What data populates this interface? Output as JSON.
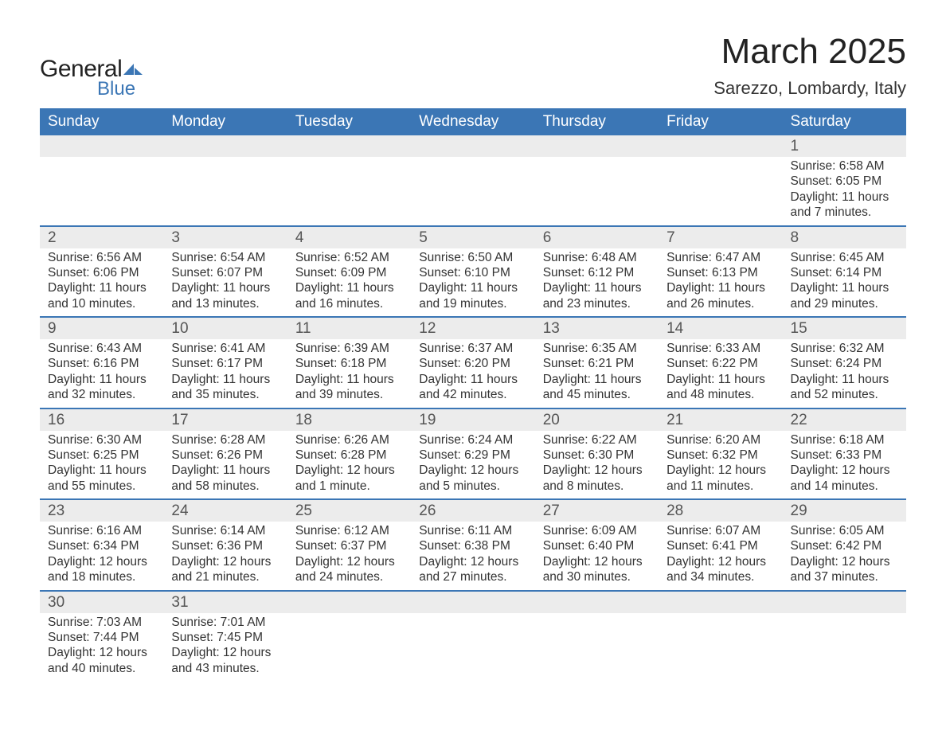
{
  "brand": {
    "word1": "General",
    "word2": "Blue",
    "accent_color": "#3b76b5"
  },
  "title": "March 2025",
  "location": "Sarezzo, Lombardy, Italy",
  "weekday_headers": [
    "Sunday",
    "Monday",
    "Tuesday",
    "Wednesday",
    "Thursday",
    "Friday",
    "Saturday"
  ],
  "colors": {
    "header_bg": "#3b76b5",
    "header_fg": "#ffffff",
    "daynum_bg": "#ececec",
    "row_divider": "#3b76b5",
    "text": "#333333",
    "page_bg": "#ffffff"
  },
  "typography": {
    "title_fontsize": 44,
    "location_fontsize": 22,
    "weekday_fontsize": 19,
    "daynum_fontsize": 19,
    "body_fontsize": 15.5
  },
  "weeks": [
    [
      null,
      null,
      null,
      null,
      null,
      null,
      {
        "n": "1",
        "sunrise": "6:58 AM",
        "sunset": "6:05 PM",
        "daylight": "11 hours and 7 minutes."
      }
    ],
    [
      {
        "n": "2",
        "sunrise": "6:56 AM",
        "sunset": "6:06 PM",
        "daylight": "11 hours and 10 minutes."
      },
      {
        "n": "3",
        "sunrise": "6:54 AM",
        "sunset": "6:07 PM",
        "daylight": "11 hours and 13 minutes."
      },
      {
        "n": "4",
        "sunrise": "6:52 AM",
        "sunset": "6:09 PM",
        "daylight": "11 hours and 16 minutes."
      },
      {
        "n": "5",
        "sunrise": "6:50 AM",
        "sunset": "6:10 PM",
        "daylight": "11 hours and 19 minutes."
      },
      {
        "n": "6",
        "sunrise": "6:48 AM",
        "sunset": "6:12 PM",
        "daylight": "11 hours and 23 minutes."
      },
      {
        "n": "7",
        "sunrise": "6:47 AM",
        "sunset": "6:13 PM",
        "daylight": "11 hours and 26 minutes."
      },
      {
        "n": "8",
        "sunrise": "6:45 AM",
        "sunset": "6:14 PM",
        "daylight": "11 hours and 29 minutes."
      }
    ],
    [
      {
        "n": "9",
        "sunrise": "6:43 AM",
        "sunset": "6:16 PM",
        "daylight": "11 hours and 32 minutes."
      },
      {
        "n": "10",
        "sunrise": "6:41 AM",
        "sunset": "6:17 PM",
        "daylight": "11 hours and 35 minutes."
      },
      {
        "n": "11",
        "sunrise": "6:39 AM",
        "sunset": "6:18 PM",
        "daylight": "11 hours and 39 minutes."
      },
      {
        "n": "12",
        "sunrise": "6:37 AM",
        "sunset": "6:20 PM",
        "daylight": "11 hours and 42 minutes."
      },
      {
        "n": "13",
        "sunrise": "6:35 AM",
        "sunset": "6:21 PM",
        "daylight": "11 hours and 45 minutes."
      },
      {
        "n": "14",
        "sunrise": "6:33 AM",
        "sunset": "6:22 PM",
        "daylight": "11 hours and 48 minutes."
      },
      {
        "n": "15",
        "sunrise": "6:32 AM",
        "sunset": "6:24 PM",
        "daylight": "11 hours and 52 minutes."
      }
    ],
    [
      {
        "n": "16",
        "sunrise": "6:30 AM",
        "sunset": "6:25 PM",
        "daylight": "11 hours and 55 minutes."
      },
      {
        "n": "17",
        "sunrise": "6:28 AM",
        "sunset": "6:26 PM",
        "daylight": "11 hours and 58 minutes."
      },
      {
        "n": "18",
        "sunrise": "6:26 AM",
        "sunset": "6:28 PM",
        "daylight": "12 hours and 1 minute."
      },
      {
        "n": "19",
        "sunrise": "6:24 AM",
        "sunset": "6:29 PM",
        "daylight": "12 hours and 5 minutes."
      },
      {
        "n": "20",
        "sunrise": "6:22 AM",
        "sunset": "6:30 PM",
        "daylight": "12 hours and 8 minutes."
      },
      {
        "n": "21",
        "sunrise": "6:20 AM",
        "sunset": "6:32 PM",
        "daylight": "12 hours and 11 minutes."
      },
      {
        "n": "22",
        "sunrise": "6:18 AM",
        "sunset": "6:33 PM",
        "daylight": "12 hours and 14 minutes."
      }
    ],
    [
      {
        "n": "23",
        "sunrise": "6:16 AM",
        "sunset": "6:34 PM",
        "daylight": "12 hours and 18 minutes."
      },
      {
        "n": "24",
        "sunrise": "6:14 AM",
        "sunset": "6:36 PM",
        "daylight": "12 hours and 21 minutes."
      },
      {
        "n": "25",
        "sunrise": "6:12 AM",
        "sunset": "6:37 PM",
        "daylight": "12 hours and 24 minutes."
      },
      {
        "n": "26",
        "sunrise": "6:11 AM",
        "sunset": "6:38 PM",
        "daylight": "12 hours and 27 minutes."
      },
      {
        "n": "27",
        "sunrise": "6:09 AM",
        "sunset": "6:40 PM",
        "daylight": "12 hours and 30 minutes."
      },
      {
        "n": "28",
        "sunrise": "6:07 AM",
        "sunset": "6:41 PM",
        "daylight": "12 hours and 34 minutes."
      },
      {
        "n": "29",
        "sunrise": "6:05 AM",
        "sunset": "6:42 PM",
        "daylight": "12 hours and 37 minutes."
      }
    ],
    [
      {
        "n": "30",
        "sunrise": "7:03 AM",
        "sunset": "7:44 PM",
        "daylight": "12 hours and 40 minutes."
      },
      {
        "n": "31",
        "sunrise": "7:01 AM",
        "sunset": "7:45 PM",
        "daylight": "12 hours and 43 minutes."
      },
      null,
      null,
      null,
      null,
      null
    ]
  ],
  "labels": {
    "sunrise_prefix": "Sunrise: ",
    "sunset_prefix": "Sunset: ",
    "daylight_prefix": "Daylight: "
  }
}
